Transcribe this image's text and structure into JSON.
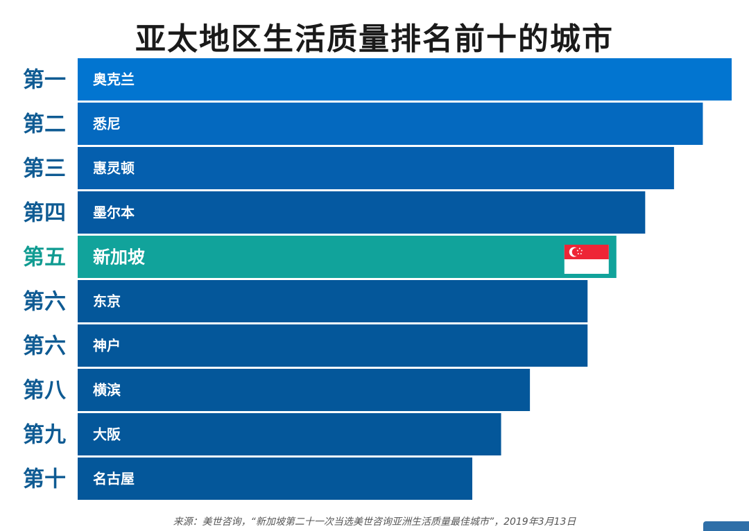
{
  "title": "亚太地区生活质量排名前十的城市",
  "source": "来源：美世咨询，“新加坡第二十一次当选美世咨询亚洲生活质量最佳城市”，2019年3月13日",
  "colors": {
    "highlight": "#11a39b",
    "highlight_label": "#0f9b91",
    "rank_label": "#0f5b93",
    "bar_palette": [
      "#0275d0",
      "#0469bf",
      "#055fae",
      "#0559a1",
      "#04579a"
    ]
  },
  "icons": {
    "highlight_marker": "singapore-flag-icon"
  },
  "chart_data": {
    "type": "bar",
    "orientation": "horizontal",
    "categories": [
      "奥克兰",
      "悉尼",
      "惠灵顿",
      "墨尔本",
      "新加坡",
      "东京",
      "神户",
      "横滨",
      "大阪",
      "名古屋"
    ],
    "rank_labels": [
      "第一",
      "第二",
      "第三",
      "第四",
      "第五",
      "第六",
      "第六",
      "第八",
      "第九",
      "第十"
    ],
    "values": [
      1,
      2,
      3,
      4,
      5,
      6,
      6,
      8,
      9,
      10
    ],
    "value_meaning": "rank (1 = best; longer bar = better rank)",
    "highlight_category": "新加坡",
    "xlim": [
      1,
      10
    ],
    "grid": false,
    "legend": "none"
  }
}
